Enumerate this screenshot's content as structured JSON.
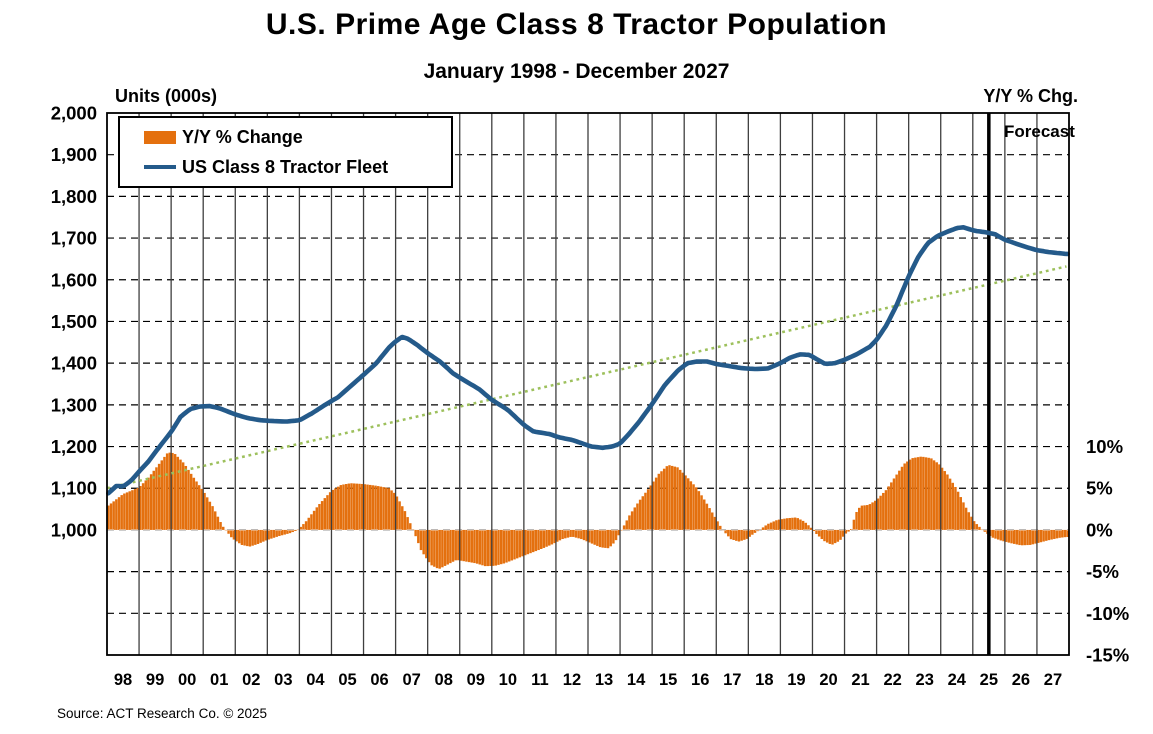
{
  "title": "U.S. Prime Age Class 8 Tractor Population",
  "subtitle": "January 1998 - December 2027",
  "left_axis_title": "Units (000s)",
  "right_axis_title": "Y/Y % Chg.",
  "forecast_label": "Forecast",
  "source": "Source: ACT Research Co. © 2025",
  "legend": {
    "items": [
      {
        "label": "Y/Y % Change",
        "swatch": "bar",
        "color": "#E4700E"
      },
      {
        "label": "US Class 8 Tractor Fleet",
        "swatch": "line",
        "color": "#245A8A"
      }
    ]
  },
  "chart_data": {
    "type": "bar+line combo",
    "title": "U.S. Prime Age Class 8 Tractor Population",
    "subtitle": "January 1998 - December 2027",
    "grid": "on",
    "legend_position": "top-left inside plot",
    "forecast_start": 2025.5,
    "left_axis": {
      "label": "Units (000s)",
      "min": 700,
      "max": 2000,
      "ticks": [
        {
          "label": "2,000",
          "value": 2000
        },
        {
          "label": "1,900",
          "value": 1900
        },
        {
          "label": "1,800",
          "value": 1800
        },
        {
          "label": "1,700",
          "value": 1700
        },
        {
          "label": "1,600",
          "value": 1600
        },
        {
          "label": "1,500",
          "value": 1500
        },
        {
          "label": "1,400",
          "value": 1400
        },
        {
          "label": "1,300",
          "value": 1300
        },
        {
          "label": "1,200",
          "value": 1200
        },
        {
          "label": "1,100",
          "value": 1100
        },
        {
          "label": "1,000",
          "value": 1000
        }
      ]
    },
    "right_axis": {
      "label": "Y/Y % Chg.",
      "min": -15,
      "max": 50,
      "ticks": [
        {
          "label": "10%",
          "value": 10
        },
        {
          "label": "5%",
          "value": 5
        },
        {
          "label": "0%",
          "value": 0
        },
        {
          "label": "-5%",
          "value": -5
        },
        {
          "label": "-10%",
          "value": -10
        },
        {
          "label": "-15%",
          "value": -15
        }
      ]
    },
    "x_axis": {
      "start_year": 1998,
      "end_year": 2027,
      "labels": [
        "98",
        "99",
        "00",
        "01",
        "02",
        "03",
        "04",
        "05",
        "06",
        "07",
        "08",
        "09",
        "10",
        "11",
        "12",
        "13",
        "14",
        "15",
        "16",
        "17",
        "18",
        "19",
        "20",
        "21",
        "22",
        "23",
        "24",
        "25",
        "26",
        "27"
      ]
    },
    "series": [
      {
        "name": "Y/Y % Change",
        "type": "bar",
        "axis": "right",
        "color": "#E4700E",
        "units": "percent",
        "points": [
          [
            1998.0,
            2.8
          ],
          [
            1998.5,
            4.3
          ],
          [
            1999.0,
            5.1
          ],
          [
            1999.3,
            6.3
          ],
          [
            1999.6,
            7.8
          ],
          [
            1999.9,
            9.3
          ],
          [
            2000.1,
            9.2
          ],
          [
            2000.4,
            8.0
          ],
          [
            2000.7,
            6.3
          ],
          [
            2001.0,
            4.7
          ],
          [
            2001.3,
            2.8
          ],
          [
            2001.6,
            0.5
          ],
          [
            2001.7,
            0.0
          ],
          [
            2001.9,
            -1.0
          ],
          [
            2002.2,
            -1.8
          ],
          [
            2002.45,
            -2.0
          ],
          [
            2002.7,
            -1.7
          ],
          [
            2003.0,
            -1.2
          ],
          [
            2003.4,
            -0.7
          ],
          [
            2003.7,
            -0.4
          ],
          [
            2003.95,
            0.0
          ],
          [
            2004.2,
            1.0
          ],
          [
            2004.6,
            3.0
          ],
          [
            2005.0,
            4.7
          ],
          [
            2005.3,
            5.4
          ],
          [
            2005.6,
            5.6
          ],
          [
            2006.0,
            5.5
          ],
          [
            2006.4,
            5.3
          ],
          [
            2006.8,
            5.0
          ],
          [
            2007.0,
            4.3
          ],
          [
            2007.3,
            2.2
          ],
          [
            2007.55,
            0.0
          ],
          [
            2007.8,
            -2.5
          ],
          [
            2008.1,
            -4.2
          ],
          [
            2008.35,
            -4.7
          ],
          [
            2008.6,
            -4.2
          ],
          [
            2008.9,
            -3.6
          ],
          [
            2009.2,
            -3.8
          ],
          [
            2009.5,
            -4.0
          ],
          [
            2009.8,
            -4.35
          ],
          [
            2010.1,
            -4.3
          ],
          [
            2010.4,
            -4.0
          ],
          [
            2010.8,
            -3.4
          ],
          [
            2011.2,
            -2.8
          ],
          [
            2011.6,
            -2.2
          ],
          [
            2011.9,
            -1.7
          ],
          [
            2012.2,
            -1.1
          ],
          [
            2012.5,
            -0.8
          ],
          [
            2012.8,
            -1.1
          ],
          [
            2013.1,
            -1.6
          ],
          [
            2013.4,
            -2.1
          ],
          [
            2013.65,
            -2.2
          ],
          [
            2013.85,
            -1.4
          ],
          [
            2014.05,
            0.0
          ],
          [
            2014.3,
            1.8
          ],
          [
            2014.6,
            3.5
          ],
          [
            2014.9,
            5.0
          ],
          [
            2015.2,
            6.7
          ],
          [
            2015.5,
            7.8
          ],
          [
            2015.8,
            7.5
          ],
          [
            2016.1,
            6.3
          ],
          [
            2016.4,
            5.0
          ],
          [
            2016.7,
            3.2
          ],
          [
            2017.0,
            1.3
          ],
          [
            2017.2,
            0.0
          ],
          [
            2017.45,
            -1.1
          ],
          [
            2017.7,
            -1.4
          ],
          [
            2017.95,
            -1.1
          ],
          [
            2018.15,
            -0.5
          ],
          [
            2018.35,
            0.0
          ],
          [
            2018.6,
            0.7
          ],
          [
            2018.9,
            1.2
          ],
          [
            2019.2,
            1.4
          ],
          [
            2019.5,
            1.5
          ],
          [
            2019.75,
            1.0
          ],
          [
            2019.95,
            0.3
          ],
          [
            2020.1,
            -0.4
          ],
          [
            2020.35,
            -1.3
          ],
          [
            2020.6,
            -1.8
          ],
          [
            2020.85,
            -1.3
          ],
          [
            2021.05,
            -0.4
          ],
          [
            2021.2,
            0.0
          ],
          [
            2021.35,
            2.0
          ],
          [
            2021.5,
            2.9
          ],
          [
            2021.75,
            3.0
          ],
          [
            2022.0,
            3.6
          ],
          [
            2022.3,
            4.8
          ],
          [
            2022.6,
            6.5
          ],
          [
            2022.85,
            7.9
          ],
          [
            2023.1,
            8.6
          ],
          [
            2023.4,
            8.8
          ],
          [
            2023.7,
            8.6
          ],
          [
            2023.95,
            7.9
          ],
          [
            2024.2,
            6.7
          ],
          [
            2024.5,
            4.9
          ],
          [
            2024.8,
            2.6
          ],
          [
            2025.05,
            1.0
          ],
          [
            2025.3,
            0.0
          ],
          [
            2025.6,
            -0.9
          ],
          [
            2025.9,
            -1.3
          ],
          [
            2026.2,
            -1.6
          ],
          [
            2026.5,
            -1.85
          ],
          [
            2026.8,
            -1.8
          ],
          [
            2027.1,
            -1.5
          ],
          [
            2027.4,
            -1.2
          ],
          [
            2027.7,
            -0.95
          ],
          [
            2027.92,
            -0.85
          ]
        ]
      },
      {
        "name": "US Class 8 Tractor Fleet",
        "type": "line",
        "axis": "left",
        "color": "#245A8A",
        "units": "thousands",
        "points": [
          [
            1998.0,
            1085
          ],
          [
            1998.3,
            1106
          ],
          [
            1998.5,
            1104
          ],
          [
            1998.75,
            1118
          ],
          [
            1999.0,
            1140
          ],
          [
            1999.3,
            1165
          ],
          [
            1999.6,
            1196
          ],
          [
            2000.0,
            1235
          ],
          [
            2000.3,
            1272
          ],
          [
            2000.6,
            1290
          ],
          [
            2000.9,
            1296
          ],
          [
            2001.2,
            1297
          ],
          [
            2001.5,
            1292
          ],
          [
            2001.8,
            1283
          ],
          [
            2002.0,
            1277
          ],
          [
            2002.4,
            1268
          ],
          [
            2002.8,
            1263
          ],
          [
            2003.2,
            1261
          ],
          [
            2003.6,
            1260
          ],
          [
            2004.0,
            1263
          ],
          [
            2004.4,
            1280
          ],
          [
            2004.8,
            1300
          ],
          [
            2005.2,
            1318
          ],
          [
            2005.6,
            1345
          ],
          [
            2006.0,
            1372
          ],
          [
            2006.4,
            1400
          ],
          [
            2006.8,
            1438
          ],
          [
            2007.0,
            1452
          ],
          [
            2007.2,
            1463
          ],
          [
            2007.4,
            1458
          ],
          [
            2007.7,
            1442
          ],
          [
            2008.0,
            1424
          ],
          [
            2008.4,
            1403
          ],
          [
            2008.8,
            1375
          ],
          [
            2009.2,
            1356
          ],
          [
            2009.6,
            1338
          ],
          [
            2010.0,
            1312
          ],
          [
            2010.5,
            1288
          ],
          [
            2011.0,
            1252
          ],
          [
            2011.3,
            1236
          ],
          [
            2011.8,
            1230
          ],
          [
            2012.1,
            1222
          ],
          [
            2012.5,
            1216
          ],
          [
            2012.8,
            1208
          ],
          [
            2013.1,
            1200
          ],
          [
            2013.45,
            1197
          ],
          [
            2013.75,
            1200
          ],
          [
            2014.0,
            1207
          ],
          [
            2014.3,
            1232
          ],
          [
            2014.6,
            1260
          ],
          [
            2015.0,
            1302
          ],
          [
            2015.4,
            1348
          ],
          [
            2015.8,
            1382
          ],
          [
            2016.1,
            1400
          ],
          [
            2016.4,
            1404
          ],
          [
            2016.7,
            1404
          ],
          [
            2017.0,
            1398
          ],
          [
            2017.4,
            1393
          ],
          [
            2017.8,
            1388
          ],
          [
            2018.2,
            1386
          ],
          [
            2018.6,
            1387
          ],
          [
            2019.0,
            1400
          ],
          [
            2019.3,
            1413
          ],
          [
            2019.6,
            1421
          ],
          [
            2019.9,
            1420
          ],
          [
            2020.1,
            1411
          ],
          [
            2020.4,
            1398
          ],
          [
            2020.7,
            1400
          ],
          [
            2021.0,
            1408
          ],
          [
            2021.4,
            1422
          ],
          [
            2021.8,
            1440
          ],
          [
            2022.0,
            1456
          ],
          [
            2022.3,
            1490
          ],
          [
            2022.6,
            1535
          ],
          [
            2023.0,
            1608
          ],
          [
            2023.3,
            1655
          ],
          [
            2023.6,
            1688
          ],
          [
            2023.9,
            1705
          ],
          [
            2024.2,
            1715
          ],
          [
            2024.5,
            1724
          ],
          [
            2024.7,
            1726
          ],
          [
            2024.9,
            1721
          ],
          [
            2025.1,
            1717
          ],
          [
            2025.4,
            1714
          ],
          [
            2025.7,
            1709
          ],
          [
            2026.0,
            1696
          ],
          [
            2026.3,
            1688
          ],
          [
            2026.6,
            1680
          ],
          [
            2027.0,
            1671
          ],
          [
            2027.4,
            1666
          ],
          [
            2027.92,
            1662
          ]
        ]
      },
      {
        "name": "Trend (dotted)",
        "type": "dotted-line",
        "axis": "left",
        "color": "#9DC05C",
        "units": "thousands",
        "points": [
          [
            1998.0,
            1100
          ],
          [
            2027.92,
            1632
          ]
        ]
      }
    ]
  }
}
